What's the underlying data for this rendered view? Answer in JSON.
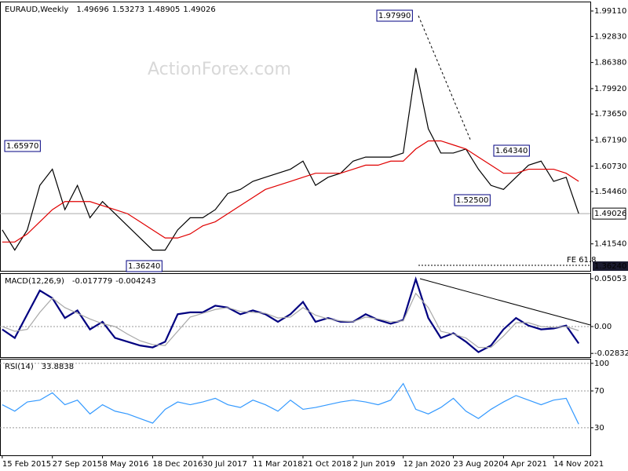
{
  "chart_data": [
    {
      "type": "line",
      "title": "EURAUD,Weekly",
      "ohlc": [
        1.49696,
        1.53273,
        1.48905,
        1.49026
      ],
      "watermark": "ActionForex.com",
      "x": [
        "2015-02-15",
        "2015-04-12",
        "2015-06-07",
        "2015-08-02",
        "2015-09-27",
        "2015-11-22",
        "2016-01-17",
        "2016-03-13",
        "2016-05-08",
        "2016-07-03",
        "2016-08-28",
        "2016-10-23",
        "2016-12-18",
        "2017-02-12",
        "2017-04-09",
        "2017-06-04",
        "2017-07-30",
        "2017-09-24",
        "2017-11-19",
        "2018-01-14",
        "2018-03-11",
        "2018-05-06",
        "2018-07-01",
        "2018-08-26",
        "2018-10-21",
        "2018-12-16",
        "2019-02-10",
        "2019-04-07",
        "2019-06-02",
        "2019-07-28",
        "2019-09-22",
        "2019-11-17",
        "2020-01-12",
        "2020-03-08",
        "2020-05-03",
        "2020-06-28",
        "2020-08-23",
        "2020-10-18",
        "2020-12-13",
        "2021-02-07",
        "2021-04-04",
        "2021-05-30",
        "2021-07-25",
        "2021-09-19",
        "2021-11-14",
        "2022-01-09",
        "2022-03-06"
      ],
      "xlim": [
        "2015-02-05",
        "2022-04-27"
      ],
      "series": [
        {
          "color": "#000000",
          "values": [
            1.45,
            1.4,
            1.45,
            1.56,
            1.6,
            1.5,
            1.56,
            1.48,
            1.52,
            1.49,
            1.46,
            1.43,
            1.4,
            1.4,
            1.45,
            1.48,
            1.48,
            1.5,
            1.54,
            1.55,
            1.57,
            1.58,
            1.59,
            1.6,
            1.62,
            1.56,
            1.58,
            1.59,
            1.62,
            1.63,
            1.63,
            1.63,
            1.64,
            1.85,
            1.7,
            1.64,
            1.64,
            1.65,
            1.6,
            1.56,
            1.55,
            1.58,
            1.61,
            1.62,
            1.57,
            1.58,
            1.49026
          ]
        },
        {
          "color": "#e00000",
          "values": [
            1.42,
            1.42,
            1.44,
            1.47,
            1.5,
            1.52,
            1.52,
            1.52,
            1.51,
            1.5,
            1.49,
            1.47,
            1.45,
            1.43,
            1.43,
            1.44,
            1.46,
            1.47,
            1.49,
            1.51,
            1.53,
            1.55,
            1.56,
            1.57,
            1.58,
            1.59,
            1.59,
            1.59,
            1.6,
            1.61,
            1.61,
            1.62,
            1.62,
            1.65,
            1.67,
            1.67,
            1.66,
            1.65,
            1.63,
            1.61,
            1.59,
            1.59,
            1.6,
            1.6,
            1.6,
            1.59,
            1.57
          ]
        }
      ],
      "annotations": [
        "1.97990",
        "1.65970",
        "1.36240",
        "1.52500",
        "1.64340",
        "FE 61.8",
        "1.36240"
      ],
      "ylim": [
        1.3488,
        2.0144
      ],
      "yticks": [
        {
          "value": 1.9911,
          "label": "1.99110"
        },
        {
          "value": 1.9283,
          "label": "1.92830"
        },
        {
          "value": 1.8638,
          "label": "1.86380"
        },
        {
          "value": 1.7992,
          "label": "1.79920"
        },
        {
          "value": 1.7365,
          "label": "1.73650"
        },
        {
          "value": 1.6719,
          "label": "1.67190"
        },
        {
          "value": 1.6073,
          "label": "1.60730"
        },
        {
          "value": 1.5446,
          "label": "1.54460"
        },
        {
          "value": 1.4154,
          "label": "1.41540"
        }
      ],
      "grid": false
    },
    {
      "type": "line",
      "title": "MACD(12,26,9)",
      "readout": [
        -0.017779,
        -0.004243
      ],
      "x": [
        "2015-02-15",
        "2015-04-12",
        "2015-06-07",
        "2015-08-02",
        "2015-09-27",
        "2015-11-22",
        "2016-01-17",
        "2016-03-13",
        "2016-05-08",
        "2016-07-03",
        "2016-08-28",
        "2016-10-23",
        "2016-12-18",
        "2017-02-12",
        "2017-04-09",
        "2017-06-04",
        "2017-07-30",
        "2017-09-24",
        "2017-11-19",
        "2018-01-14",
        "2018-03-11",
        "2018-05-06",
        "2018-07-01",
        "2018-08-26",
        "2018-10-21",
        "2018-12-16",
        "2019-02-10",
        "2019-04-07",
        "2019-06-02",
        "2019-07-28",
        "2019-09-22",
        "2019-11-17",
        "2020-01-12",
        "2020-03-08",
        "2020-05-03",
        "2020-06-28",
        "2020-08-23",
        "2020-10-18",
        "2020-12-13",
        "2021-02-07",
        "2021-04-04",
        "2021-05-30",
        "2021-07-25",
        "2021-09-19",
        "2021-11-14",
        "2022-01-09",
        "2022-03-06"
      ],
      "xlim": [
        "2015-02-05",
        "2022-04-27"
      ],
      "series": [
        {
          "color": "#000080",
          "values": [
            -0.003,
            -0.012,
            0.013,
            0.038,
            0.03,
            0.009,
            0.017,
            -0.003,
            0.005,
            -0.012,
            -0.016,
            -0.02,
            -0.022,
            -0.016,
            0.013,
            0.015,
            0.015,
            0.022,
            0.02,
            0.013,
            0.017,
            0.013,
            0.005,
            0.013,
            0.026,
            0.005,
            0.009,
            0.005,
            0.005,
            0.013,
            0.007,
            0.003,
            0.007,
            0.05,
            0.009,
            -0.012,
            -0.007,
            -0.016,
            -0.027,
            -0.02,
            -0.003,
            0.009,
            0.001,
            -0.003,
            -0.002,
            0.001,
            -0.017779
          ]
        },
        {
          "color": "#a8a8a8",
          "values": [
            0,
            -0.005,
            -0.003,
            0.015,
            0.03,
            0.02,
            0.014,
            0.008,
            0.003,
            0,
            -0.008,
            -0.015,
            -0.019,
            -0.02,
            -0.005,
            0.01,
            0.014,
            0.018,
            0.02,
            0.016,
            0.015,
            0.014,
            0.009,
            0.01,
            0.02,
            0.012,
            0.008,
            0.006,
            0.005,
            0.01,
            0.008,
            0.005,
            0.006,
            0.035,
            0.02,
            -0.005,
            -0.008,
            -0.012,
            -0.022,
            -0.022,
            -0.01,
            0.004,
            0.004,
            0,
            -0.001,
            0,
            -0.004243
          ]
        }
      ],
      "ylim": [
        -0.0323,
        0.0563
      ],
      "yticks": [
        0.05053,
        {
          "value": 0,
          "label": "0.00"
        },
        -0.028323
      ],
      "grid": false
    },
    {
      "type": "line",
      "title": "RSI(14)",
      "readout": [
        33.8838
      ],
      "x": [
        "2015-02-15",
        "2015-04-12",
        "2015-06-07",
        "2015-08-02",
        "2015-09-27",
        "2015-11-22",
        "2016-01-17",
        "2016-03-13",
        "2016-05-08",
        "2016-07-03",
        "2016-08-28",
        "2016-10-23",
        "2016-12-18",
        "2017-02-12",
        "2017-04-09",
        "2017-06-04",
        "2017-07-30",
        "2017-09-24",
        "2017-11-19",
        "2018-01-14",
        "2018-03-11",
        "2018-05-06",
        "2018-07-01",
        "2018-08-26",
        "2018-10-21",
        "2018-12-16",
        "2019-02-10",
        "2019-04-07",
        "2019-06-02",
        "2019-07-28",
        "2019-09-22",
        "2019-11-17",
        "2020-01-12",
        "2020-03-08",
        "2020-05-03",
        "2020-06-28",
        "2020-08-23",
        "2020-10-18",
        "2020-12-13",
        "2021-02-07",
        "2021-04-04",
        "2021-05-30",
        "2021-07-25",
        "2021-09-19",
        "2021-11-14",
        "2022-01-09",
        "2022-03-06"
      ],
      "xlim": [
        "2015-02-05",
        "2022-04-27"
      ],
      "series": [
        {
          "color": "#3399ff",
          "values": [
            55,
            48,
            58,
            60,
            68,
            55,
            60,
            45,
            55,
            48,
            45,
            40,
            35,
            50,
            58,
            55,
            58,
            62,
            55,
            52,
            60,
            55,
            48,
            60,
            50,
            52,
            55,
            58,
            60,
            58,
            55,
            60,
            78,
            50,
            45,
            52,
            62,
            48,
            40,
            50,
            58,
            65,
            60,
            55,
            60,
            62,
            33.8838
          ]
        }
      ],
      "ylim": [
        0,
        105
      ],
      "yticks": [
        100,
        70,
        30
      ],
      "grid": true,
      "xticks": [
        {
          "value": "2015-02-15",
          "label": "15 Feb 2015"
        },
        {
          "value": "2015-09-27",
          "label": "27 Sep 2015"
        },
        {
          "value": "2016-05-08",
          "label": "8 May 2016"
        },
        {
          "value": "2016-12-18",
          "label": "18 Dec 2016"
        },
        {
          "value": "2017-07-30",
          "label": "30 Jul 2017"
        },
        {
          "value": "2018-03-11",
          "label": "11 Mar 2018"
        },
        {
          "value": "2018-10-21",
          "label": "21 Oct 2018"
        },
        {
          "value": "2019-06-02",
          "label": "2 Jun 2019"
        },
        {
          "value": "2020-01-12",
          "label": "12 Jan 2020"
        },
        {
          "value": "2020-08-23",
          "label": "23 Aug 2020"
        },
        {
          "value": "2021-04-04",
          "label": "4 Apr 2021"
        },
        {
          "value": "2021-11-14",
          "label": "14 Nov 2021"
        }
      ]
    }
  ]
}
